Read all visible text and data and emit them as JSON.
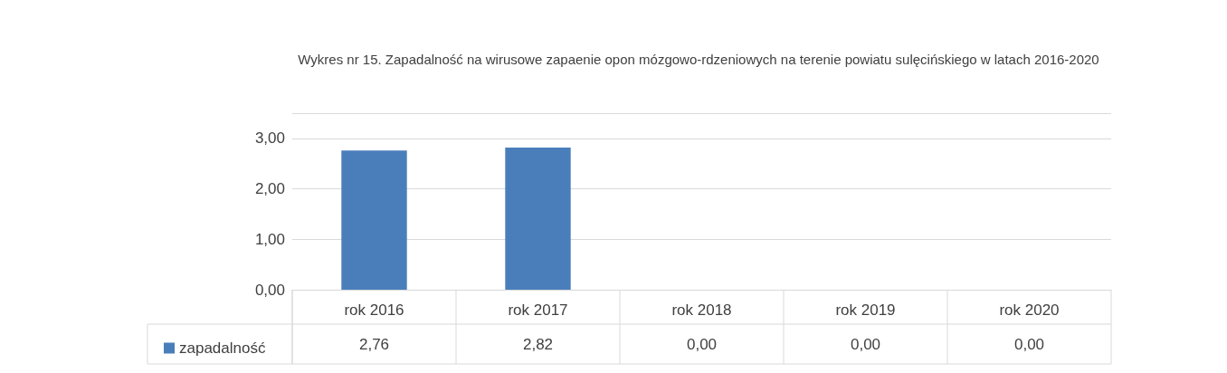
{
  "chart_data": {
    "type": "bar",
    "title": "Wykres nr 15. Zapadalność na wirusowe zapaenie opon mózgowo-rdzeniowych na terenie powiatu sulęcińskiego w latach 2016-2020",
    "categories": [
      "rok 2016",
      "rok 2017",
      "rok 2018",
      "rok 2019",
      "rok 2020"
    ],
    "series": [
      {
        "name": "zapadalność",
        "color": "#4a7ebb",
        "values": [
          2.76,
          2.82,
          0,
          0,
          0
        ],
        "value_labels": [
          "2,76",
          "2,82",
          "0,00",
          "0,00",
          "0,00"
        ]
      }
    ],
    "ylim": [
      0,
      3.5
    ],
    "yticks": [
      {
        "value": 0,
        "label": "0,00"
      },
      {
        "value": 1,
        "label": "1,00"
      },
      {
        "value": 2,
        "label": "2,00"
      },
      {
        "value": 3,
        "label": "3,00"
      },
      {
        "value": 3.5,
        "label": null
      }
    ],
    "grid": "y",
    "legend": "bottom left"
  }
}
